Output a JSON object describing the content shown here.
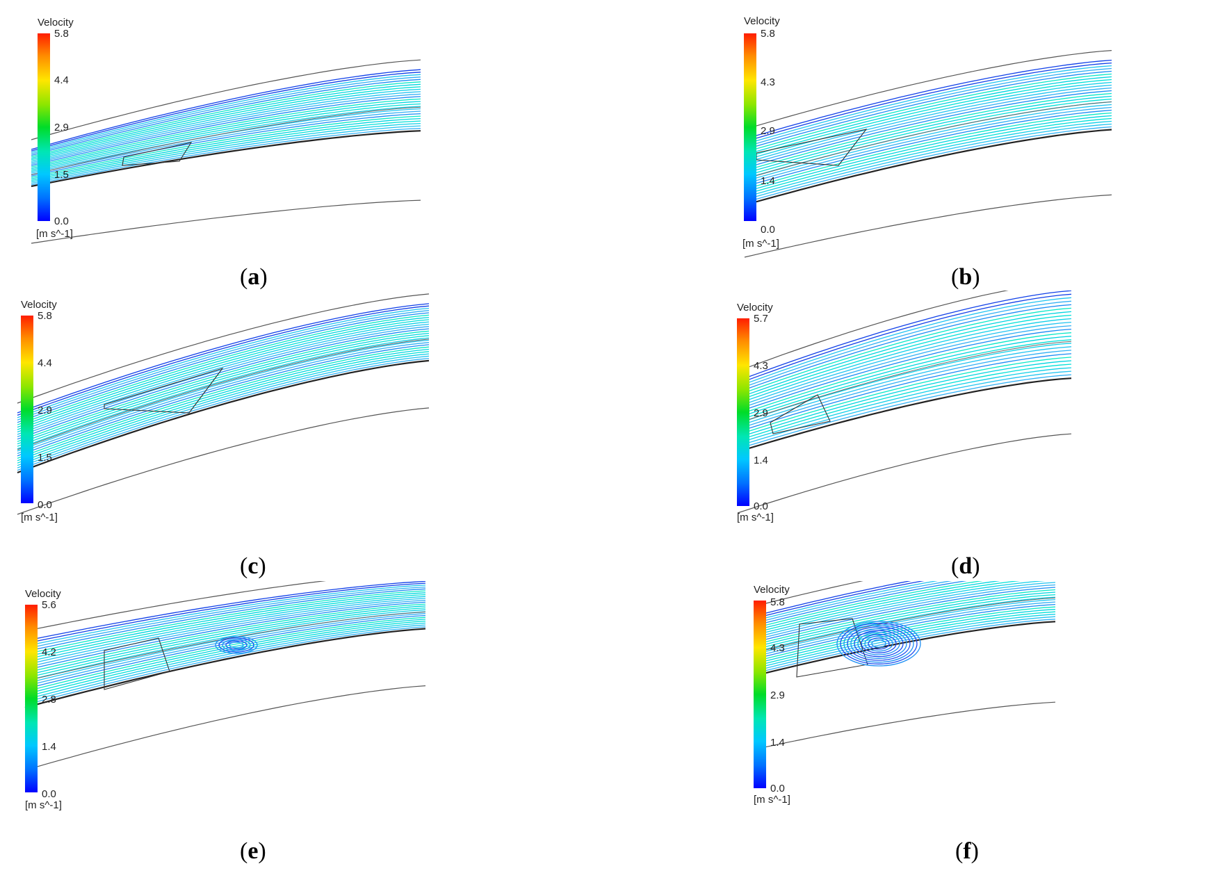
{
  "colorbar_title": "Velocity",
  "unit": "[m s^-1]",
  "colors": {
    "low": "#0000ff",
    "mid": "#00dcdc",
    "high": "#ff1e00"
  },
  "panels": [
    {
      "id": "a",
      "label": "a",
      "ticks": [
        "5.8",
        "4.4",
        "2.9",
        "1.5",
        "0.0"
      ],
      "vortex": "none"
    },
    {
      "id": "b",
      "label": "b",
      "ticks": [
        "5.8",
        "4.3",
        "2.9",
        "1.4",
        "0.0"
      ],
      "vortex": "none"
    },
    {
      "id": "c",
      "label": "c",
      "ticks": [
        "5.8",
        "4.4",
        "2.9",
        "1.5",
        "0.0"
      ],
      "vortex": "none"
    },
    {
      "id": "d",
      "label": "d",
      "ticks": [
        "5.7",
        "4.3",
        "2.9",
        "1.4",
        "0.0"
      ],
      "vortex": "none"
    },
    {
      "id": "e",
      "label": "e",
      "ticks": [
        "5.6",
        "4.2",
        "2.8",
        "1.4",
        "0.0"
      ],
      "vortex": "small"
    },
    {
      "id": "f",
      "label": "f",
      "ticks": [
        "5.8",
        "4.3",
        "2.9",
        "1.4",
        "0.0"
      ],
      "vortex": "large"
    }
  ]
}
